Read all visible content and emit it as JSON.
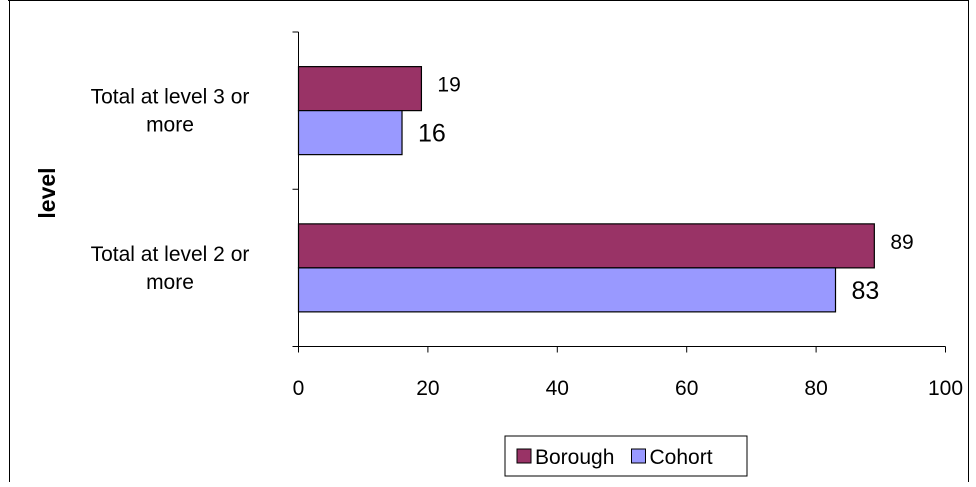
{
  "chart_data": {
    "type": "bar",
    "orientation": "horizontal",
    "title": "",
    "xlabel": "",
    "ylabel": "level",
    "categories": [
      "Total at level 2 or more",
      "Total at level 3 or more"
    ],
    "category_lines": [
      [
        "Total at level 2 or",
        "more"
      ],
      [
        "Total at level 3 or",
        "more"
      ]
    ],
    "series": [
      {
        "name": "Borough",
        "values": [
          89,
          19
        ],
        "color": "#993366"
      },
      {
        "name": "Cohort",
        "values": [
          83,
          16
        ],
        "color": "#9999FF"
      }
    ],
    "xlim": [
      0,
      100
    ],
    "xticks": [
      "0",
      "20",
      "40",
      "60",
      "80",
      "100"
    ],
    "grid": false,
    "legend_position": "bottom"
  }
}
